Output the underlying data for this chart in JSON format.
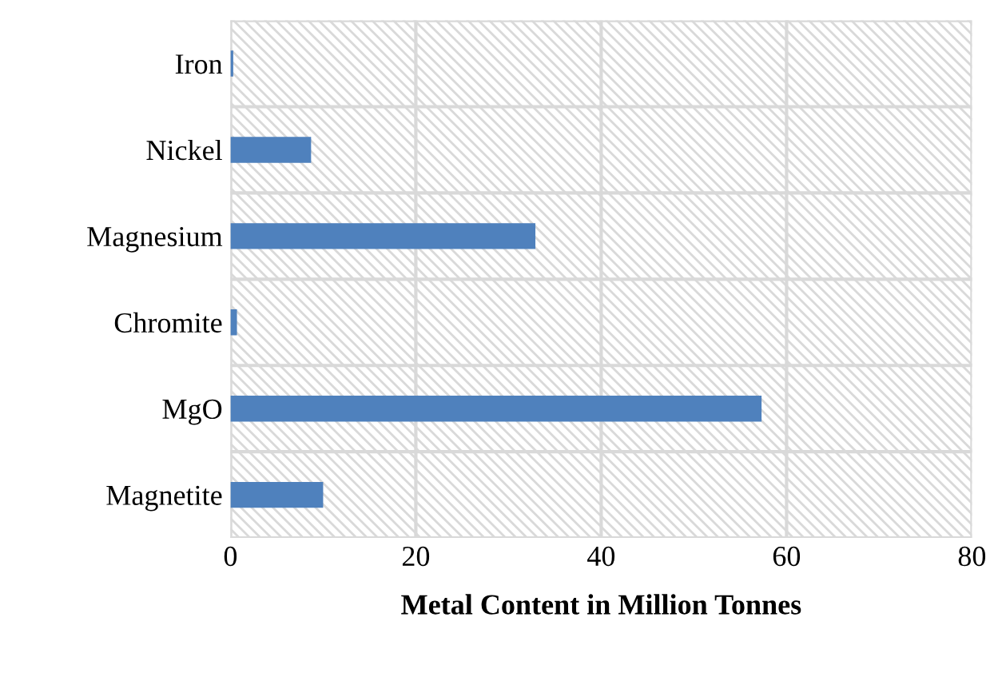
{
  "chart_data": {
    "type": "bar",
    "orientation": "horizontal",
    "xlabel": "Metal Content in Million Tonnes",
    "categories": [
      "Iron",
      "Nickel",
      "Magnesium",
      "Chromite",
      "MgO",
      "Magnetite"
    ],
    "values": [
      0.3,
      8.7,
      32.9,
      0.7,
      57.3,
      10.0
    ],
    "color": "#4f81bd",
    "xlim": [
      0,
      80
    ],
    "xticks": [
      0,
      20,
      40,
      60,
      80
    ],
    "grid": true
  }
}
